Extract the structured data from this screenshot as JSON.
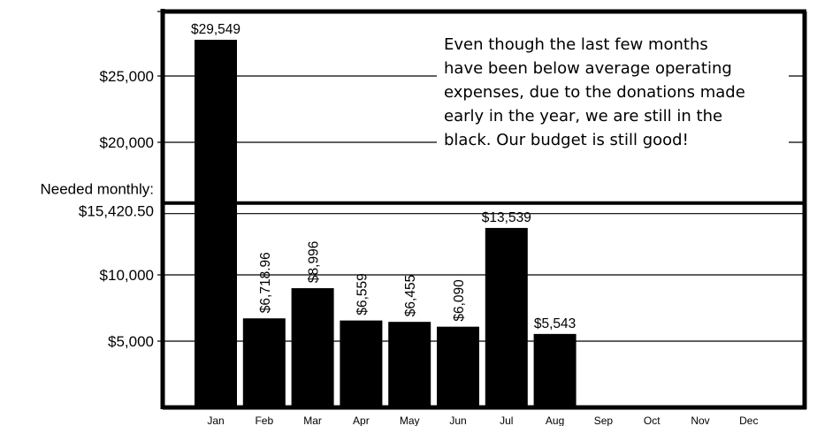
{
  "chart_data": {
    "type": "bar",
    "categories": [
      "Jan",
      "Feb",
      "Mar",
      "Apr",
      "May",
      "Jun",
      "Jul",
      "Aug",
      "Sep",
      "Oct",
      "Nov",
      "Dec"
    ],
    "values": [
      29549,
      6718.96,
      8996,
      6559,
      6455,
      6090,
      13539,
      5543,
      null,
      null,
      null,
      null
    ],
    "data_labels": [
      "$29,549",
      "$6,718.96",
      "$8,996",
      "$6,559",
      "$6,455",
      "$6,090",
      "$13,539",
      "$5,543",
      "",
      "",
      "",
      ""
    ],
    "rotated_labels": [
      false,
      true,
      true,
      true,
      true,
      true,
      false,
      false
    ],
    "y_ticks": [
      {
        "value": 5000,
        "label": "$5,000"
      },
      {
        "value": 10000,
        "label": "$10,000"
      },
      {
        "value": 20000,
        "label": "$20,000"
      },
      {
        "value": 25000,
        "label": "$25,000"
      }
    ],
    "reference_line": {
      "value": 15420.5,
      "label_line1": "Needed monthly:",
      "label_line2": "$15,420.50"
    },
    "ylim": [
      0,
      30500
    ],
    "grid": true,
    "bar_color": "#000000",
    "annotation": [
      "Even though the last few months",
      "have been below average operating",
      "expenses, due to the donations made",
      "early in the year, we are still in the",
      "black. Our budget is still good!"
    ]
  }
}
